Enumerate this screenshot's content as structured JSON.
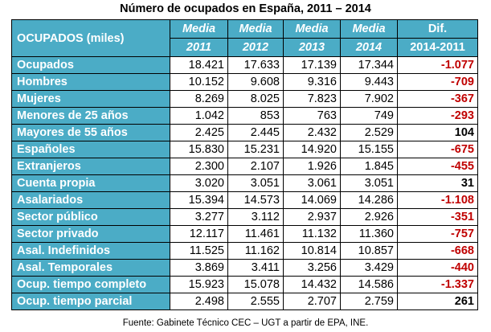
{
  "title": "Número de ocupados en España, 2011 – 2014",
  "header": {
    "row_label": "OCUPADOS (miles)",
    "columns": [
      {
        "top": "Media",
        "bottom": "2011"
      },
      {
        "top": "Media",
        "bottom": "2012"
      },
      {
        "top": "Media",
        "bottom": "2013"
      },
      {
        "top": "Media",
        "bottom": "2014"
      },
      {
        "top": "Dif.",
        "bottom": "2014-2011"
      }
    ]
  },
  "colors": {
    "header_bg": "#4BACC6",
    "negative": "#C00000",
    "positive": "#000000"
  },
  "rows": [
    {
      "label": "Ocupados",
      "values": [
        "18.421",
        "17.633",
        "17.139",
        "17.344"
      ],
      "dif": "-1.077"
    },
    {
      "label": "Hombres",
      "values": [
        "10.152",
        "9.608",
        "9.316",
        "9.443"
      ],
      "dif": "-709"
    },
    {
      "label": "Mujeres",
      "values": [
        "8.269",
        "8.025",
        "7.823",
        "7.902"
      ],
      "dif": "-367"
    },
    {
      "label": "Menores de 25 años",
      "values": [
        "1.042",
        "853",
        "763",
        "749"
      ],
      "dif": "-293"
    },
    {
      "label": "Mayores de 55 años",
      "values": [
        "2.425",
        "2.445",
        "2.432",
        "2.529"
      ],
      "dif": "104"
    },
    {
      "label": "Españoles",
      "values": [
        "15.830",
        "15.231",
        "14.920",
        "15.155"
      ],
      "dif": "-675"
    },
    {
      "label": "Extranjeros",
      "values": [
        "2.300",
        "2.107",
        "1.926",
        "1.845"
      ],
      "dif": "-455"
    },
    {
      "label": "Cuenta propia",
      "values": [
        "3.020",
        "3.051",
        "3.061",
        "3.051"
      ],
      "dif": "31"
    },
    {
      "label": "Asalariados",
      "values": [
        "15.394",
        "14.573",
        "14.069",
        "14.286"
      ],
      "dif": "-1.108"
    },
    {
      "label": "Sector público",
      "values": [
        "3.277",
        "3.112",
        "2.937",
        "2.926"
      ],
      "dif": "-351"
    },
    {
      "label": "Sector privado",
      "values": [
        "12.117",
        "11.461",
        "11.132",
        "11.360"
      ],
      "dif": "-757"
    },
    {
      "label": "Asal. Indefinidos",
      "values": [
        "11.525",
        "11.162",
        "10.814",
        "10.857"
      ],
      "dif": "-668"
    },
    {
      "label": "Asal. Temporales",
      "values": [
        "3.869",
        "3.411",
        "3.256",
        "3.429"
      ],
      "dif": "-440"
    },
    {
      "label": "Ocup. tiempo completo",
      "values": [
        "15.923",
        "15.078",
        "14.432",
        "14.586"
      ],
      "dif": "-1.337"
    },
    {
      "label": "Ocup. tiempo parcial",
      "values": [
        "2.498",
        "2.555",
        "2.707",
        "2.759"
      ],
      "dif": "261"
    }
  ],
  "source": "Fuente: Gabinete Técnico CEC – UGT a partir de EPA, INE."
}
